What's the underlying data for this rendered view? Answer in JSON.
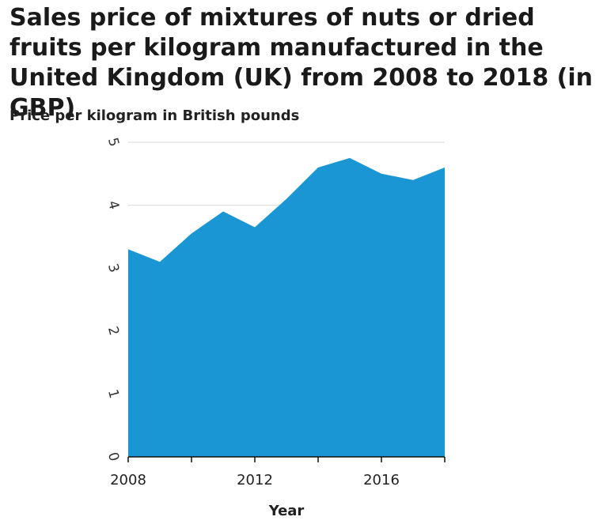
{
  "chart_data": {
    "type": "area",
    "title": "Sales price of mixtures of nuts or dried fruits per kilogram manufactured in the United Kingdom (UK) from 2008 to 2018 (in GBP)",
    "ylabel": "Price per kilogram in British pounds",
    "xlabel": "Year",
    "x": [
      2008,
      2009,
      2010,
      2011,
      2012,
      2013,
      2014,
      2015,
      2016,
      2017,
      2018
    ],
    "series": [
      {
        "values": [
          3.3,
          3.1,
          3.55,
          3.9,
          3.65,
          4.1,
          4.6,
          4.75,
          4.5,
          4.4,
          4.6
        ]
      }
    ],
    "xlim": [
      2008,
      2018
    ],
    "ylim": [
      0,
      5
    ],
    "yticks": [
      0,
      1,
      2,
      3,
      4,
      5
    ],
    "xticks": [
      2008,
      2010,
      2012,
      2014,
      2016,
      2018
    ],
    "xtick_labels": [
      "2008",
      "",
      "2012",
      "",
      "2016",
      ""
    ],
    "grid": true,
    "color": "#1a96d4"
  }
}
